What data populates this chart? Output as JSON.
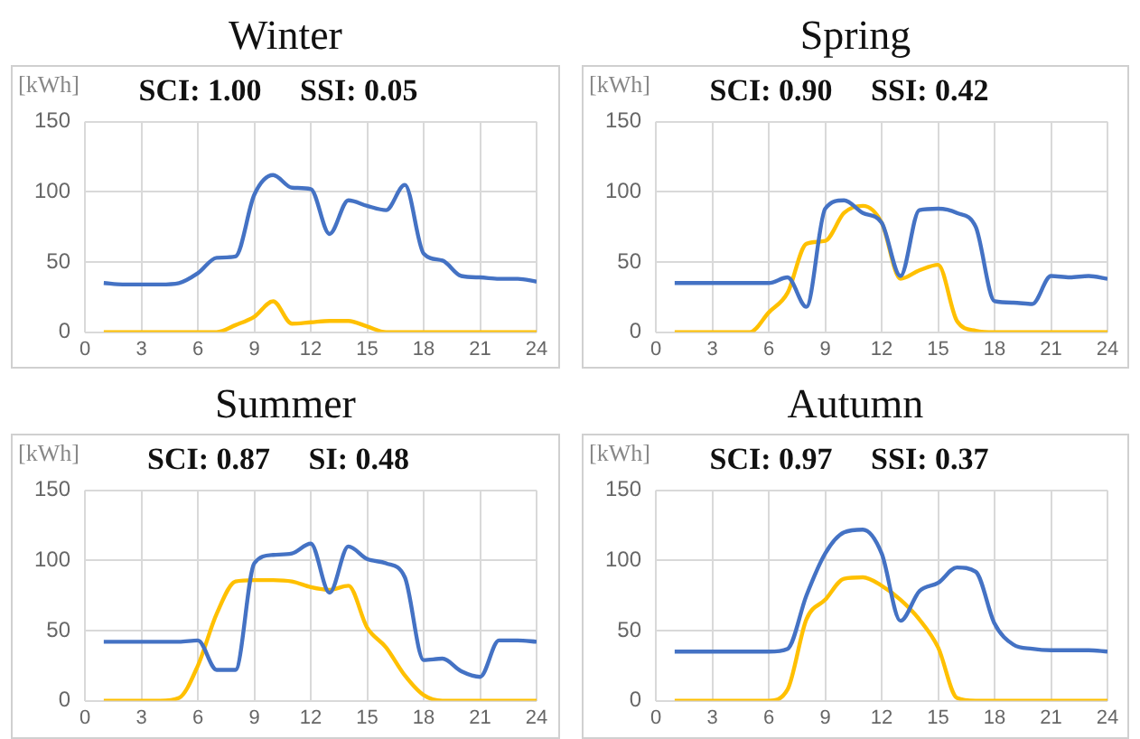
{
  "chart_data": [
    {
      "type": "line",
      "title": "Winter",
      "subtitle": "SCI: 1.00     SSI: 0.05",
      "ylabel": "[kWh]",
      "x": [
        1,
        2,
        3,
        4,
        5,
        6,
        7,
        8,
        9,
        10,
        11,
        12,
        13,
        14,
        15,
        16,
        17,
        18,
        19,
        20,
        21,
        22,
        23,
        24
      ],
      "xlim": [
        0,
        24
      ],
      "xticks": [
        0,
        3,
        6,
        9,
        12,
        15,
        18,
        21,
        24
      ],
      "ylim": [
        0,
        150
      ],
      "yticks": [
        0,
        50,
        100,
        150
      ],
      "grid": true,
      "marker": "none",
      "series": [
        {
          "color": "#4472c4",
          "values": [
            35,
            34,
            34,
            34,
            35,
            42,
            53,
            54,
            98,
            112,
            103,
            102,
            70,
            94,
            90,
            87,
            105,
            56,
            51,
            40,
            39,
            38,
            38,
            36
          ]
        },
        {
          "color": "#ffc000",
          "values": [
            0,
            0,
            0,
            0,
            0,
            0,
            0,
            5,
            11,
            22,
            6,
            7,
            8,
            8,
            4,
            0,
            0,
            0,
            0,
            0,
            0,
            0,
            0,
            0
          ]
        }
      ]
    },
    {
      "type": "line",
      "title": "Spring",
      "subtitle": "SCI: 0.90     SSI: 0.42",
      "ylabel": "[kWh]",
      "x": [
        1,
        2,
        3,
        4,
        5,
        6,
        7,
        8,
        9,
        10,
        11,
        12,
        13,
        14,
        15,
        16,
        17,
        18,
        19,
        20,
        21,
        22,
        23,
        24
      ],
      "xlim": [
        0,
        24
      ],
      "xticks": [
        0,
        3,
        6,
        9,
        12,
        15,
        18,
        21,
        24
      ],
      "ylim": [
        0,
        150
      ],
      "yticks": [
        0,
        50,
        100,
        150
      ],
      "grid": true,
      "marker": "none",
      "series": [
        {
          "color": "#4472c4",
          "values": [
            35,
            35,
            35,
            35,
            35,
            35,
            39,
            18,
            88,
            94,
            85,
            78,
            40,
            87,
            88,
            85,
            75,
            22,
            21,
            20,
            40,
            39,
            40,
            38
          ]
        },
        {
          "color": "#ffc000",
          "values": [
            0,
            0,
            0,
            0,
            0,
            14,
            28,
            63,
            65,
            85,
            90,
            78,
            38,
            44,
            48,
            8,
            1,
            0,
            0,
            0,
            0,
            0,
            0,
            0
          ]
        }
      ]
    },
    {
      "type": "line",
      "title": "Summer",
      "subtitle": "SCI: 0.87     SI: 0.48",
      "ylabel": "[kWh]",
      "x": [
        1,
        2,
        3,
        4,
        5,
        6,
        7,
        8,
        9,
        10,
        11,
        12,
        13,
        14,
        15,
        16,
        17,
        18,
        19,
        20,
        21,
        22,
        23,
        24
      ],
      "xlim": [
        0,
        24
      ],
      "xticks": [
        0,
        3,
        6,
        9,
        12,
        15,
        18,
        21,
        24
      ],
      "ylim": [
        0,
        150
      ],
      "yticks": [
        0,
        50,
        100,
        150
      ],
      "grid": true,
      "marker": "none",
      "series": [
        {
          "color": "#4472c4",
          "values": [
            42,
            42,
            42,
            42,
            42,
            43,
            22,
            22,
            98,
            104,
            105,
            112,
            77,
            110,
            101,
            98,
            88,
            29,
            30,
            21,
            17,
            43,
            43,
            42
          ]
        },
        {
          "color": "#ffc000",
          "values": [
            0,
            0,
            0,
            0,
            2,
            25,
            62,
            85,
            86,
            86,
            85,
            81,
            79,
            82,
            52,
            38,
            18,
            4,
            0,
            0,
            0,
            0,
            0,
            0
          ]
        }
      ]
    },
    {
      "type": "line",
      "title": "Autumn",
      "subtitle": "SCI: 0.97     SSI: 0.37",
      "ylabel": "[kWh]",
      "x": [
        1,
        2,
        3,
        4,
        5,
        6,
        7,
        8,
        9,
        10,
        11,
        12,
        13,
        14,
        15,
        16,
        17,
        18,
        19,
        20,
        21,
        22,
        23,
        24
      ],
      "xlim": [
        0,
        24
      ],
      "xticks": [
        0,
        3,
        6,
        9,
        12,
        15,
        18,
        21,
        24
      ],
      "ylim": [
        0,
        150
      ],
      "yticks": [
        0,
        50,
        100,
        150
      ],
      "grid": true,
      "marker": "none",
      "series": [
        {
          "color": "#4472c4",
          "values": [
            35,
            35,
            35,
            35,
            35,
            35,
            37,
            75,
            105,
            120,
            122,
            105,
            57,
            78,
            84,
            95,
            92,
            55,
            40,
            37,
            36,
            36,
            36,
            35
          ]
        },
        {
          "color": "#ffc000",
          "values": [
            0,
            0,
            0,
            0,
            0,
            0,
            8,
            58,
            72,
            87,
            88,
            82,
            72,
            58,
            38,
            2,
            0,
            0,
            0,
            0,
            0,
            0,
            0,
            0
          ]
        }
      ]
    }
  ]
}
